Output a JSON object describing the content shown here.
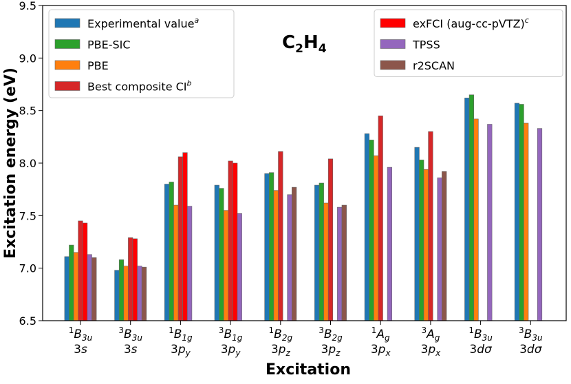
{
  "chart_data": {
    "type": "bar",
    "title": "C2H4",
    "title_parts": {
      "main": "C",
      "sub1": "2",
      "mid": "H",
      "sub2": "4"
    },
    "xlabel": "Excitation",
    "ylabel": "Excitation energy (eV)",
    "ylim": [
      6.5,
      9.5
    ],
    "yticks": [
      "6.5",
      "7.0",
      "7.5",
      "8.0",
      "8.5",
      "9.0",
      "9.5"
    ],
    "categories": [
      {
        "sup": "1",
        "state": "B",
        "sub": "3u",
        "orbital": "3s",
        "orbital_sub": ""
      },
      {
        "sup": "3",
        "state": "B",
        "sub": "3u",
        "orbital": "3s",
        "orbital_sub": ""
      },
      {
        "sup": "1",
        "state": "B",
        "sub": "1g",
        "orbital": "3p",
        "orbital_sub": "y"
      },
      {
        "sup": "3",
        "state": "B",
        "sub": "1g",
        "orbital": "3p",
        "orbital_sub": "y"
      },
      {
        "sup": "1",
        "state": "B",
        "sub": "2g",
        "orbital": "3p",
        "orbital_sub": "z"
      },
      {
        "sup": "3",
        "state": "B",
        "sub": "2g",
        "orbital": "3p",
        "orbital_sub": "z"
      },
      {
        "sup": "1",
        "state": "A",
        "sub": "g",
        "orbital": "3p",
        "orbital_sub": "x"
      },
      {
        "sup": "3",
        "state": "A",
        "sub": "g",
        "orbital": "3p",
        "orbital_sub": "x"
      },
      {
        "sup": "1",
        "state": "B",
        "sub": "3u",
        "orbital": "3dσ",
        "orbital_sub": ""
      },
      {
        "sup": "3",
        "state": "B",
        "sub": "3u",
        "orbital": "3dσ",
        "orbital_sub": ""
      }
    ],
    "series": [
      {
        "name": "Experimental value",
        "sup": "a",
        "color": "#1f77b4",
        "values": [
          7.11,
          6.98,
          7.8,
          7.79,
          7.9,
          7.79,
          8.28,
          8.15,
          8.62,
          8.57
        ]
      },
      {
        "name": "PBE-SIC",
        "sup": "",
        "color": "#2ca02c",
        "values": [
          7.22,
          7.08,
          7.82,
          7.76,
          7.91,
          7.81,
          8.22,
          8.03,
          8.65,
          8.56
        ]
      },
      {
        "name": "PBE",
        "sup": "",
        "color": "#ff7f0e",
        "values": [
          7.15,
          7.02,
          7.6,
          7.55,
          7.74,
          7.62,
          8.07,
          7.94,
          8.42,
          8.38
        ]
      },
      {
        "name": "Best composite CI",
        "sup": "b",
        "color": "#d62728",
        "values": [
          7.45,
          7.29,
          8.06,
          8.02,
          8.11,
          8.04,
          8.45,
          8.3,
          null,
          null
        ]
      },
      {
        "name": "exFCI (aug-cc-pVTZ)",
        "sup": "c",
        "color": "#ff0000",
        "values": [
          7.43,
          7.28,
          8.1,
          8.0,
          null,
          null,
          null,
          null,
          null,
          null
        ]
      },
      {
        "name": "TPSS",
        "sup": "",
        "color": "#9467bd",
        "values": [
          7.13,
          7.02,
          7.59,
          7.52,
          7.7,
          7.58,
          7.96,
          7.86,
          8.37,
          8.33
        ]
      },
      {
        "name": "r2SCAN",
        "sup": "",
        "color": "#8c564b",
        "values": [
          7.1,
          7.01,
          null,
          null,
          7.77,
          7.6,
          null,
          7.92,
          null,
          null
        ]
      }
    ],
    "legends": [
      {
        "placement": "upper-left",
        "series": [
          0,
          1,
          2,
          3
        ]
      },
      {
        "placement": "upper-right",
        "series": [
          4,
          5,
          6
        ]
      }
    ]
  }
}
